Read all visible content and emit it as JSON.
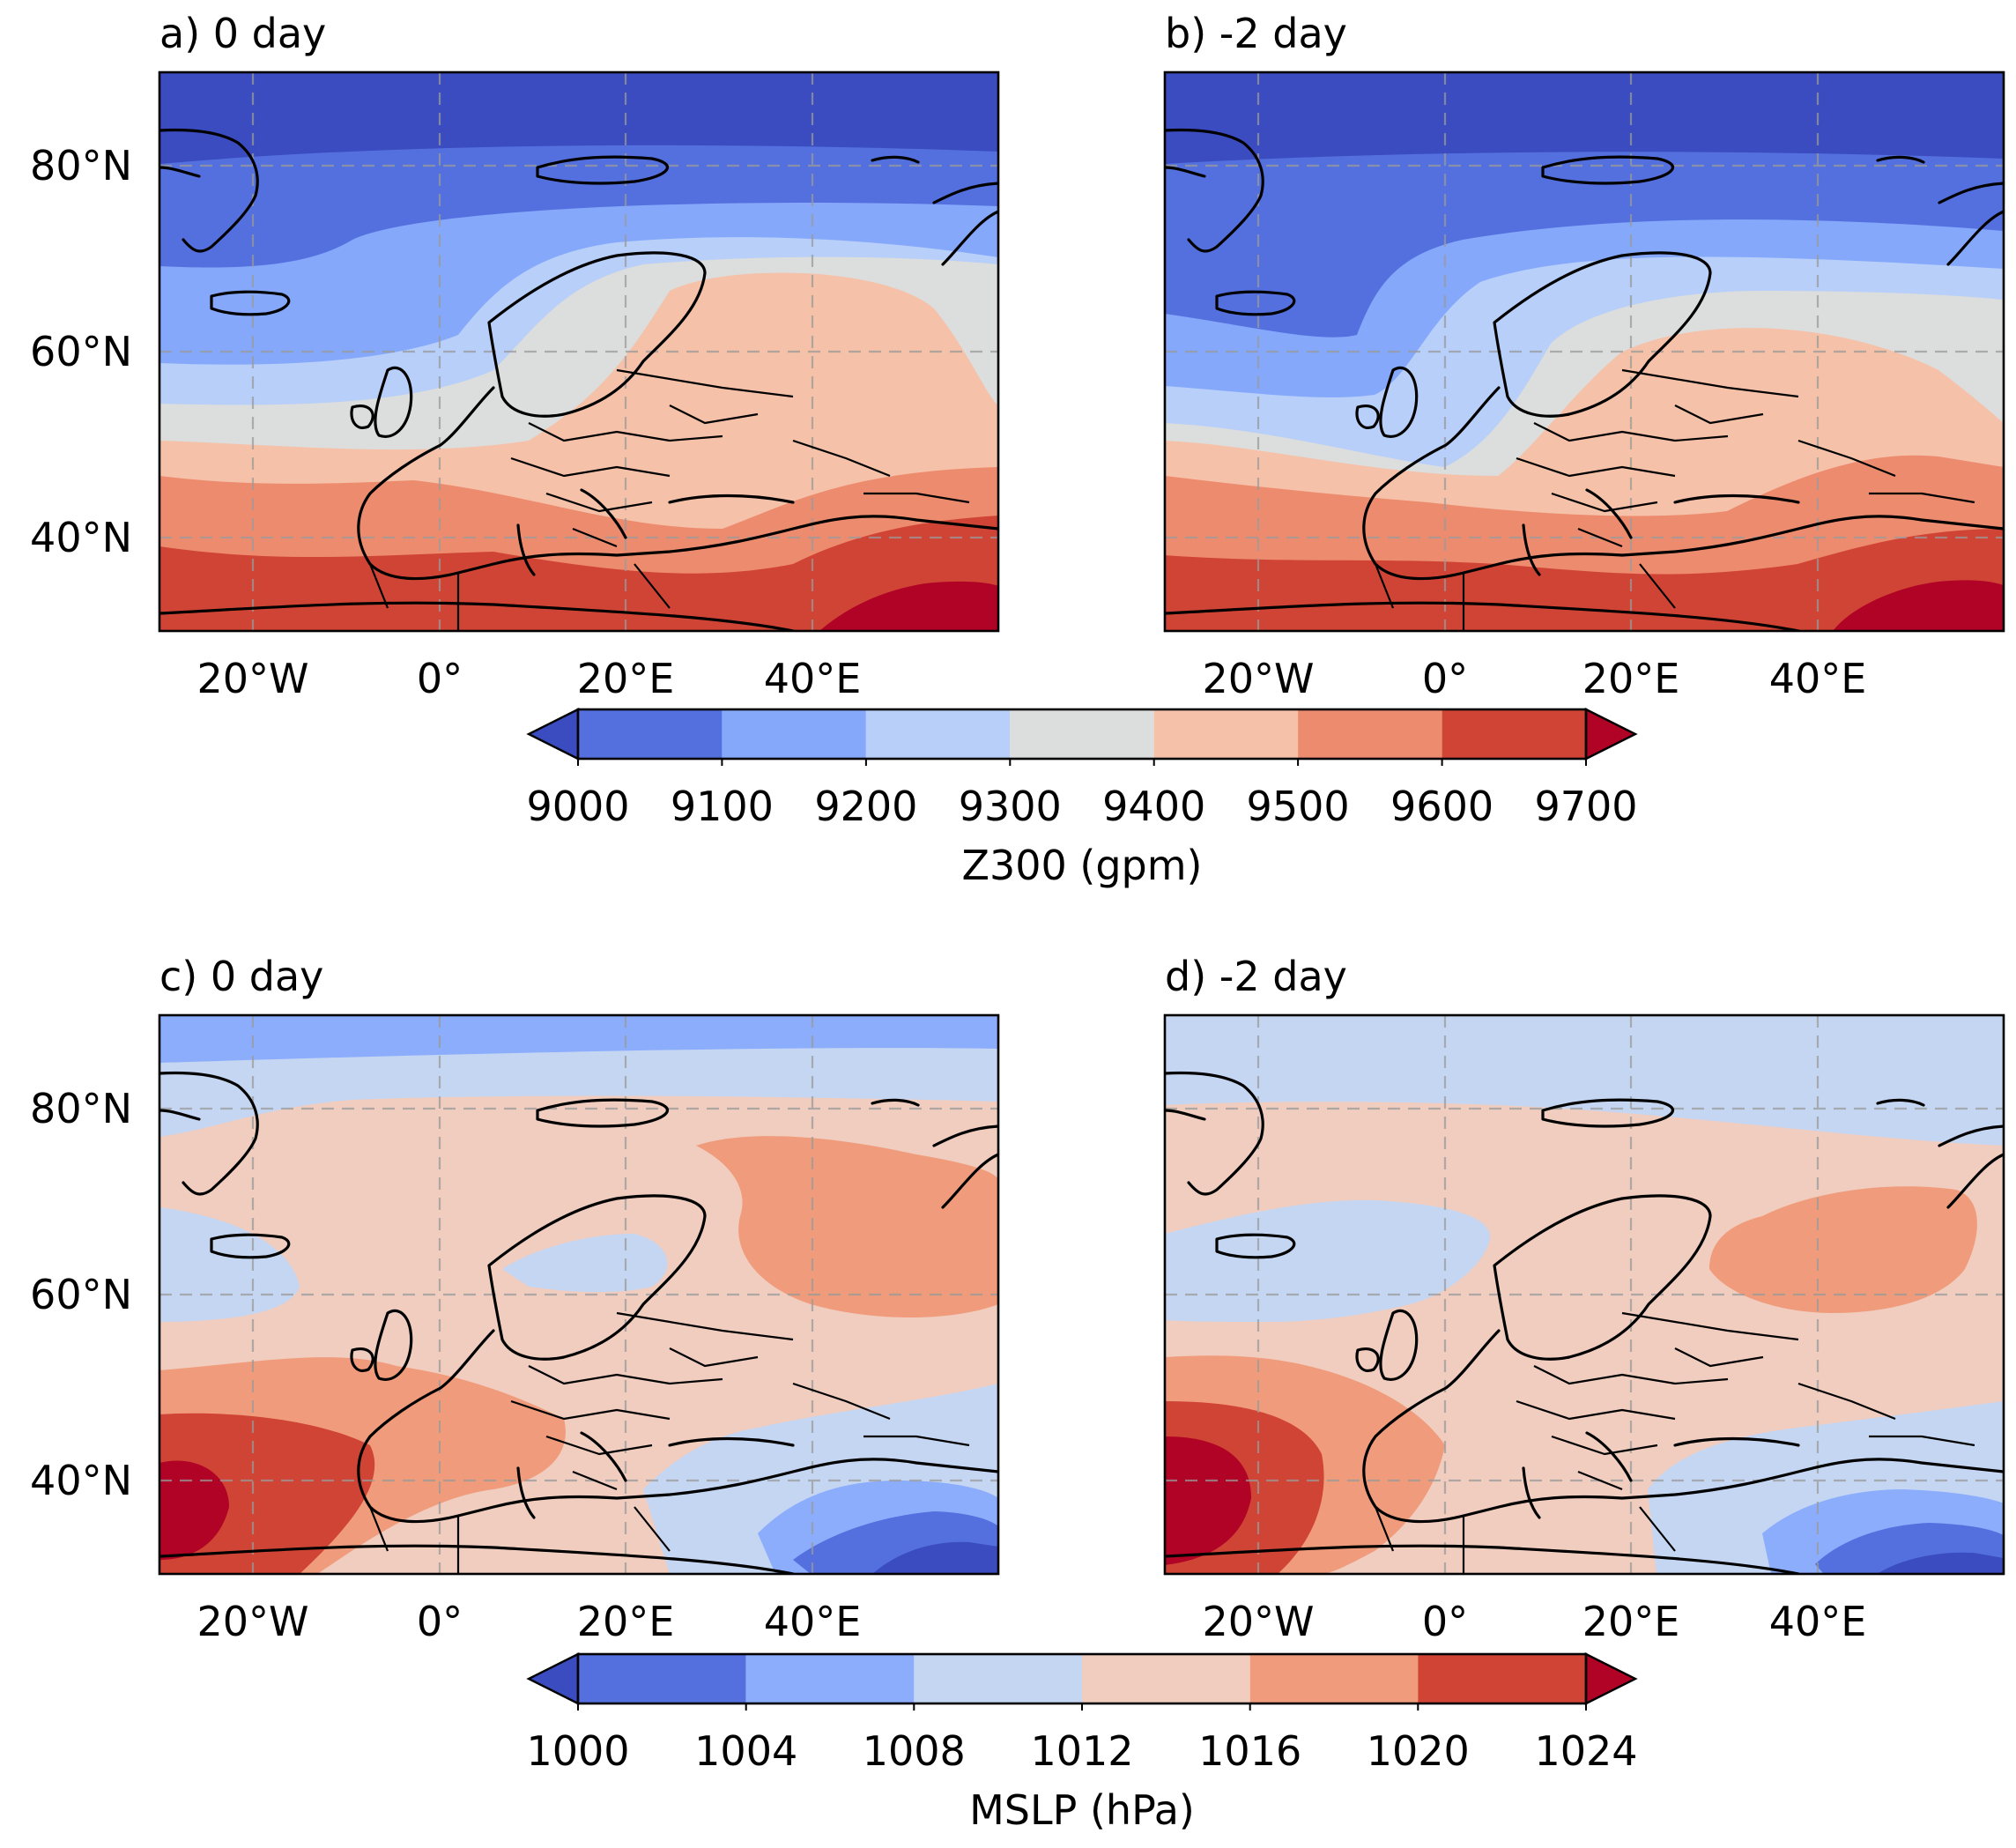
{
  "figure": {
    "rows": [
      {
        "colorbar": {
          "label": "Z300 (gpm)",
          "ticks": [
            "9000",
            "9100",
            "9200",
            "9300",
            "9400",
            "9500",
            "9600",
            "9700"
          ],
          "colors": [
            "#3a4cc0",
            "#5470de",
            "#85a8fb",
            "#b7cff9",
            "#dcdddd",
            "#f5c1a8",
            "#ed8b6f",
            "#d04435",
            "#b10326"
          ],
          "extend": "both"
        },
        "panels": [
          {
            "id": "a",
            "title": "a) 0 day"
          },
          {
            "id": "b",
            "title": "b) -2 day"
          }
        ]
      },
      {
        "colorbar": {
          "label": "MSLP (hPa)",
          "ticks": [
            "1000",
            "1004",
            "1008",
            "1012",
            "1016",
            "1020",
            "1024"
          ],
          "colors": [
            "#3a4cc0",
            "#5470de",
            "#8badfc",
            "#c5d6f2",
            "#f0cdbf",
            "#f09c7c",
            "#d04435",
            "#b10326"
          ],
          "extend": "both"
        },
        "panels": [
          {
            "id": "c",
            "title": "c) 0 day"
          },
          {
            "id": "d",
            "title": "d) -2 day"
          }
        ]
      }
    ],
    "map_extent": {
      "lon": [
        -30,
        60
      ],
      "lat": [
        30,
        90
      ]
    },
    "x_ticks": [
      {
        "lon": -20,
        "label": "20°W"
      },
      {
        "lon": 0,
        "label": "0°"
      },
      {
        "lon": 20,
        "label": "20°E"
      },
      {
        "lon": 40,
        "label": "40°E"
      }
    ],
    "y_ticks": [
      {
        "lat": 80,
        "label": "80°N"
      },
      {
        "lat": 60,
        "label": "60°N"
      },
      {
        "lat": 40,
        "label": "40°N"
      }
    ],
    "gridlines": true
  }
}
